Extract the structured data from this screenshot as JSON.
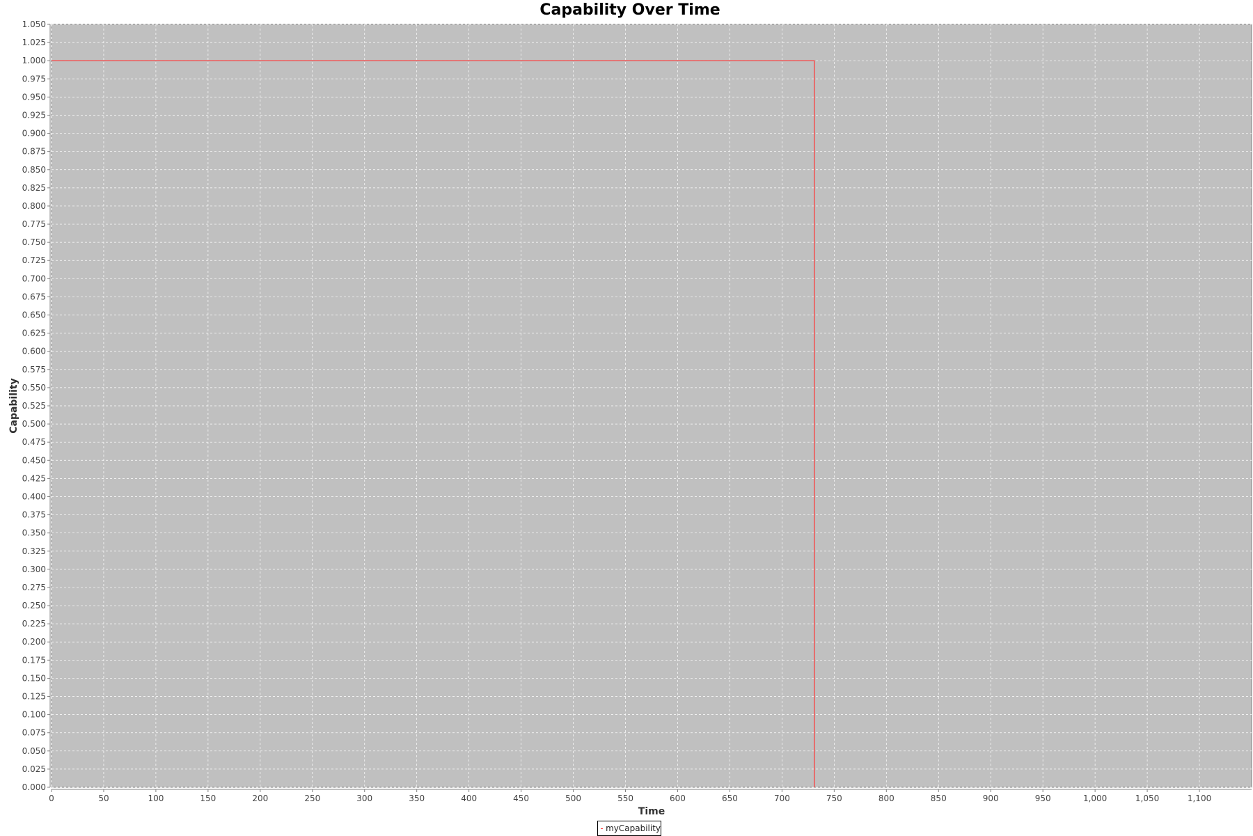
{
  "chart_data": {
    "type": "line",
    "title": "Capability Over Time",
    "xlabel": "Time",
    "ylabel": "Capability",
    "xlim": [
      0,
      1150
    ],
    "ylim": [
      0.0,
      1.05
    ],
    "x_ticks": [
      0,
      50,
      100,
      150,
      200,
      250,
      300,
      350,
      400,
      450,
      500,
      550,
      600,
      650,
      700,
      750,
      800,
      850,
      900,
      950,
      1000,
      1050,
      1100
    ],
    "x_tick_labels": [
      "0",
      "50",
      "100",
      "150",
      "200",
      "250",
      "300",
      "350",
      "400",
      "450",
      "500",
      "550",
      "600",
      "650",
      "700",
      "750",
      "800",
      "850",
      "900",
      "950",
      "1,000",
      "1,050",
      "1,100"
    ],
    "y_ticks": [
      0.0,
      0.025,
      0.05,
      0.075,
      0.1,
      0.125,
      0.15,
      0.175,
      0.2,
      0.225,
      0.25,
      0.275,
      0.3,
      0.325,
      0.35,
      0.375,
      0.4,
      0.425,
      0.45,
      0.475,
      0.5,
      0.525,
      0.55,
      0.575,
      0.6,
      0.625,
      0.65,
      0.675,
      0.7,
      0.725,
      0.75,
      0.775,
      0.8,
      0.825,
      0.85,
      0.875,
      0.9,
      0.925,
      0.95,
      0.975,
      1.0,
      1.025,
      1.05
    ],
    "y_tick_labels": [
      "0.000",
      "0.025",
      "0.050",
      "0.075",
      "0.100",
      "0.125",
      "0.150",
      "0.175",
      "0.200",
      "0.225",
      "0.250",
      "0.275",
      "0.300",
      "0.325",
      "0.350",
      "0.375",
      "0.400",
      "0.425",
      "0.450",
      "0.475",
      "0.500",
      "0.525",
      "0.550",
      "0.575",
      "0.600",
      "0.625",
      "0.650",
      "0.675",
      "0.700",
      "0.725",
      "0.750",
      "0.775",
      "0.800",
      "0.825",
      "0.850",
      "0.875",
      "0.900",
      "0.925",
      "0.950",
      "0.975",
      "1.000",
      "1.025",
      "1.050"
    ],
    "grid": true,
    "legend_position": "bottom-center",
    "series": [
      {
        "name": "myCapability",
        "color": "#ff3333",
        "x": [
          0,
          731,
          731
        ],
        "y": [
          1.0,
          1.0,
          0.0
        ]
      }
    ],
    "plot_background": "#c0c0c0",
    "grid_color": "#ffffff"
  }
}
